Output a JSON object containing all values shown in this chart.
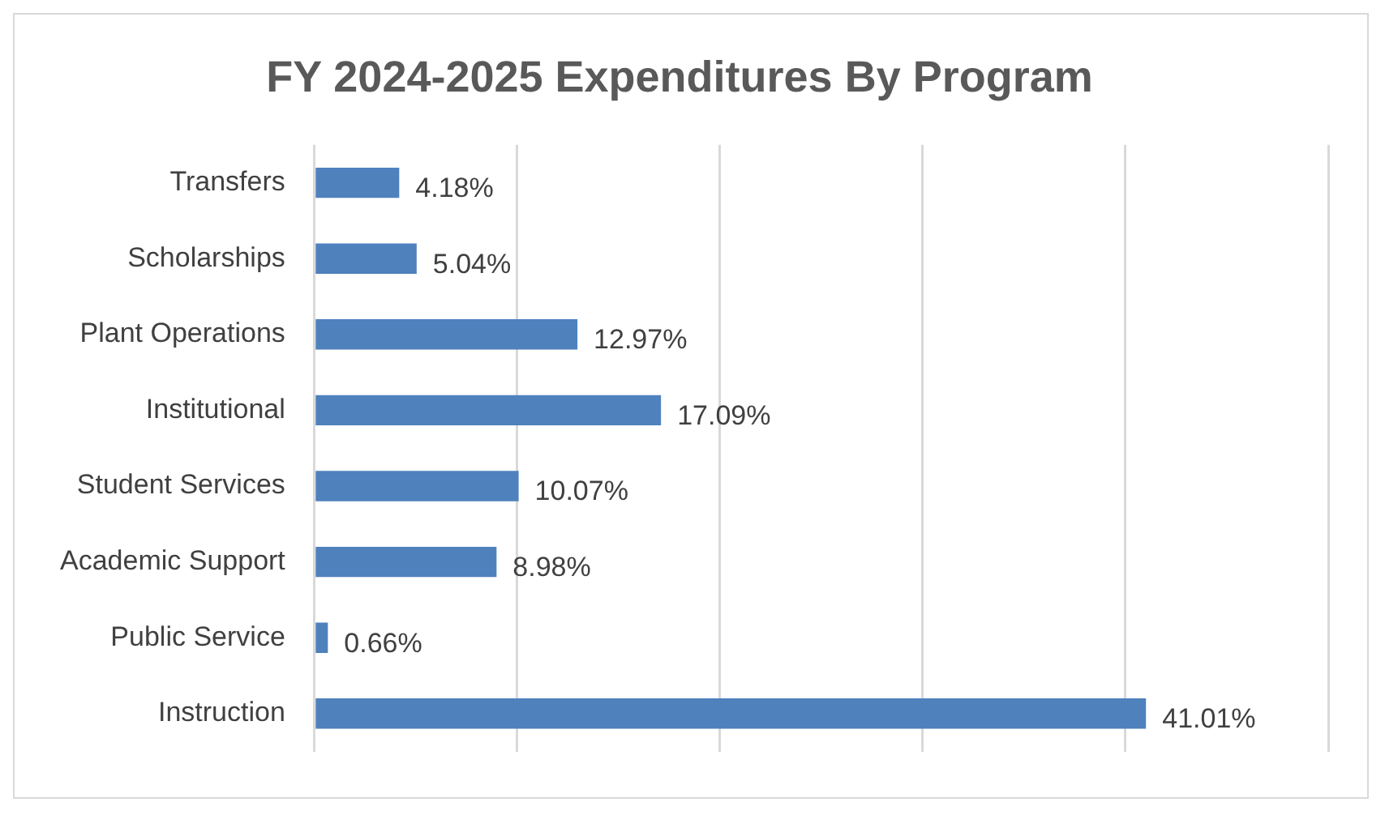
{
  "chart_data": {
    "type": "bar",
    "orientation": "horizontal",
    "title": "FY 2024-2025 Expenditures By Program",
    "categories": [
      "Transfers",
      "Scholarships",
      "Plant Operations",
      "Institutional",
      "Student Services",
      "Academic Support",
      "Public Service",
      "Instruction"
    ],
    "values": [
      4.18,
      5.04,
      12.97,
      17.09,
      10.07,
      8.98,
      0.66,
      41.01
    ],
    "value_labels": [
      "4.18%",
      "5.04%",
      "12.97%",
      "17.09%",
      "10.07%",
      "8.98%",
      "0.66%",
      "41.01%"
    ],
    "color": "#4f81bd",
    "xlim": [
      0,
      50
    ],
    "xticks": [
      {
        "value": 0,
        "label": null
      },
      {
        "value": 10,
        "label": null
      },
      {
        "value": 20,
        "label": null
      },
      {
        "value": 30,
        "label": null
      },
      {
        "value": 40,
        "label": null
      },
      {
        "value": 50,
        "label": null
      }
    ],
    "grid": "x",
    "tick_labels": "y"
  }
}
